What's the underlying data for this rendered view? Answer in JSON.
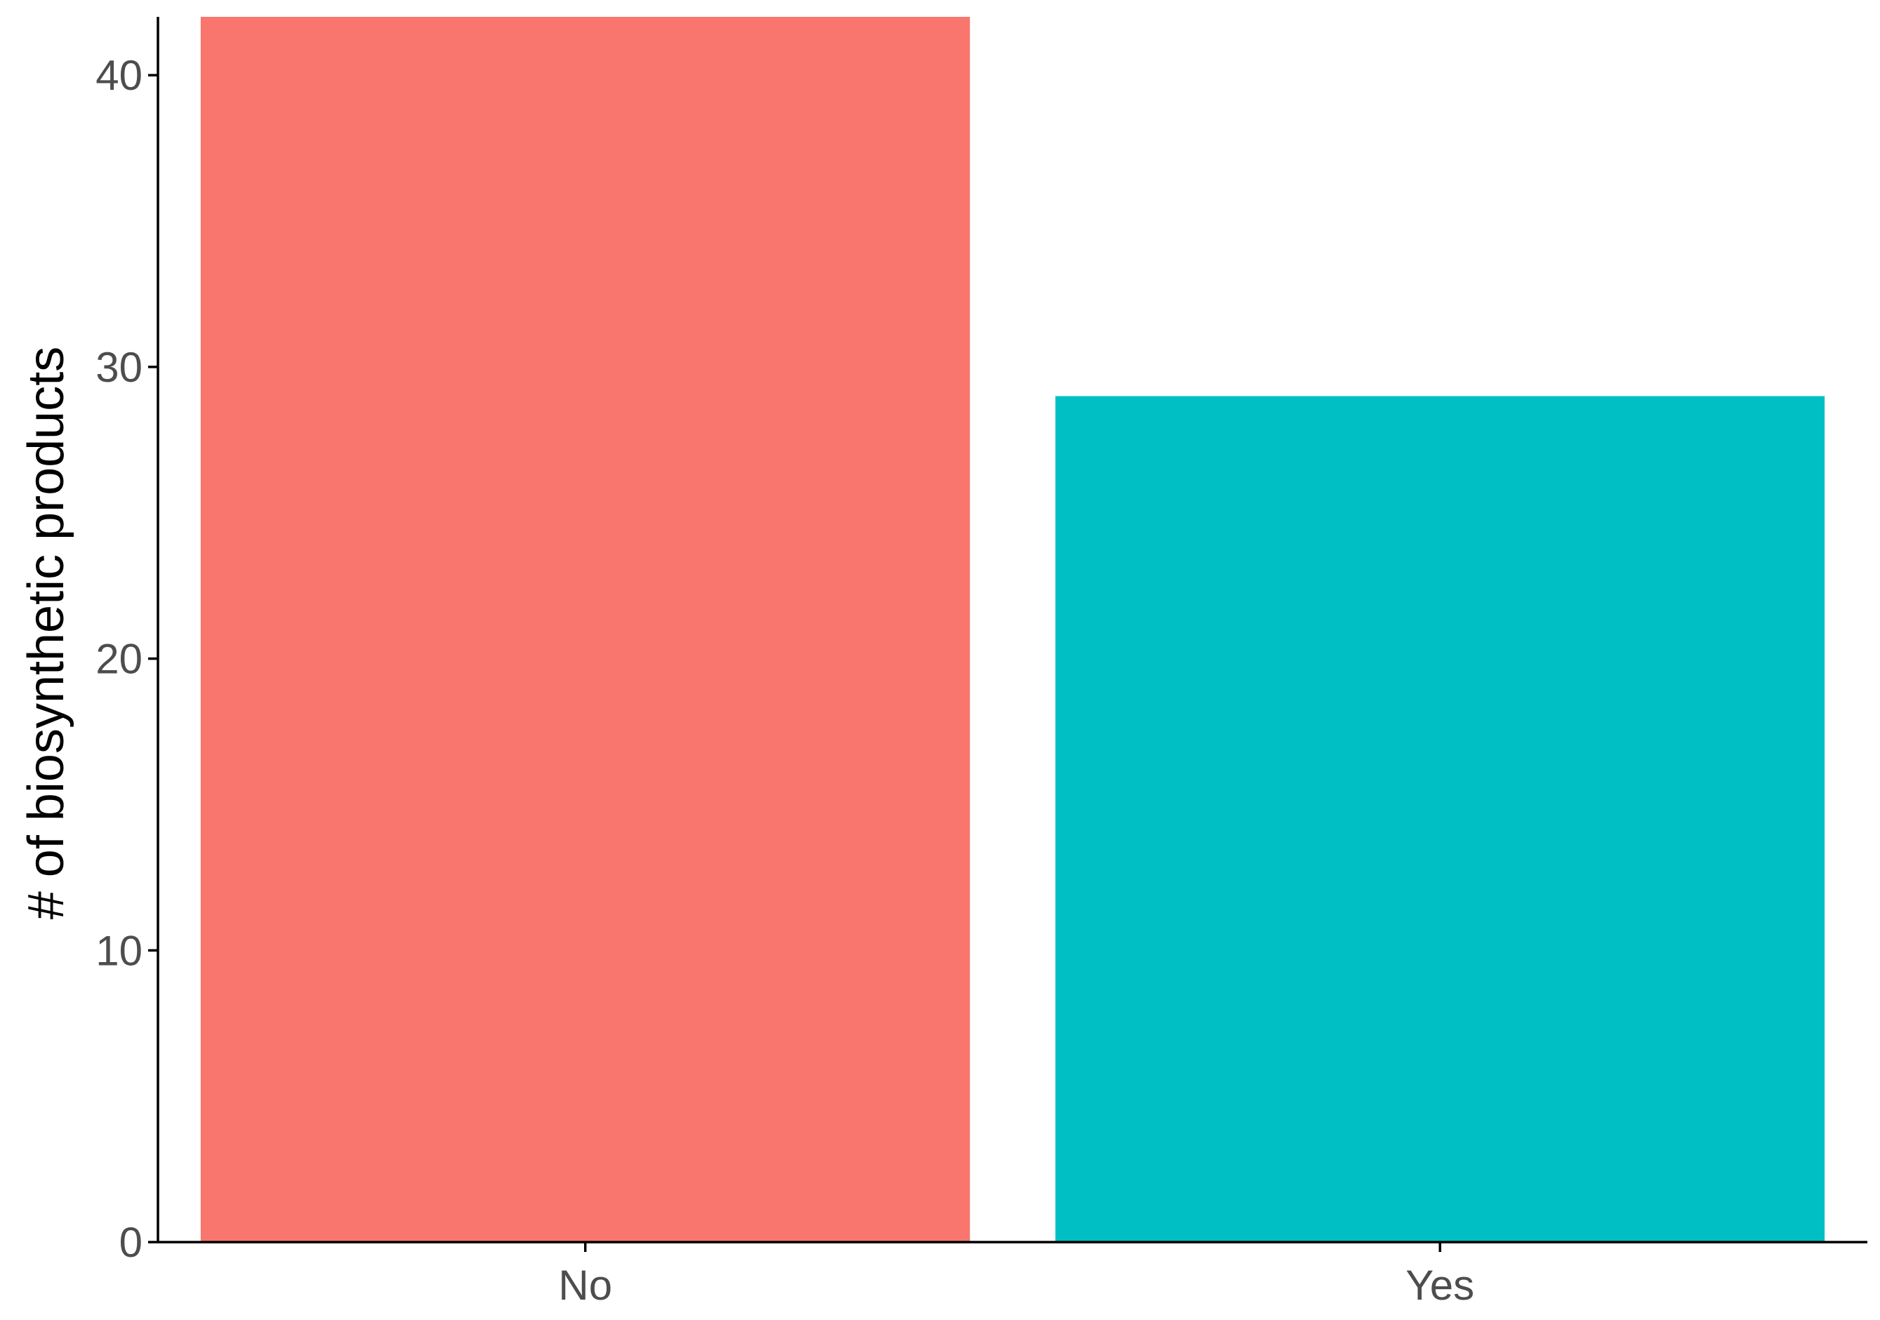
{
  "chart_data": {
    "type": "bar",
    "categories": [
      "No",
      "Yes"
    ],
    "values": [
      42,
      29
    ],
    "colors": [
      "#F8766D",
      "#00BFC4"
    ],
    "xlabel": "",
    "ylabel": "# of biosynthetic products",
    "ylim": [
      0,
      42
    ],
    "yticks": [
      0,
      10,
      20,
      30,
      40
    ],
    "grid": false,
    "legend": "none"
  }
}
